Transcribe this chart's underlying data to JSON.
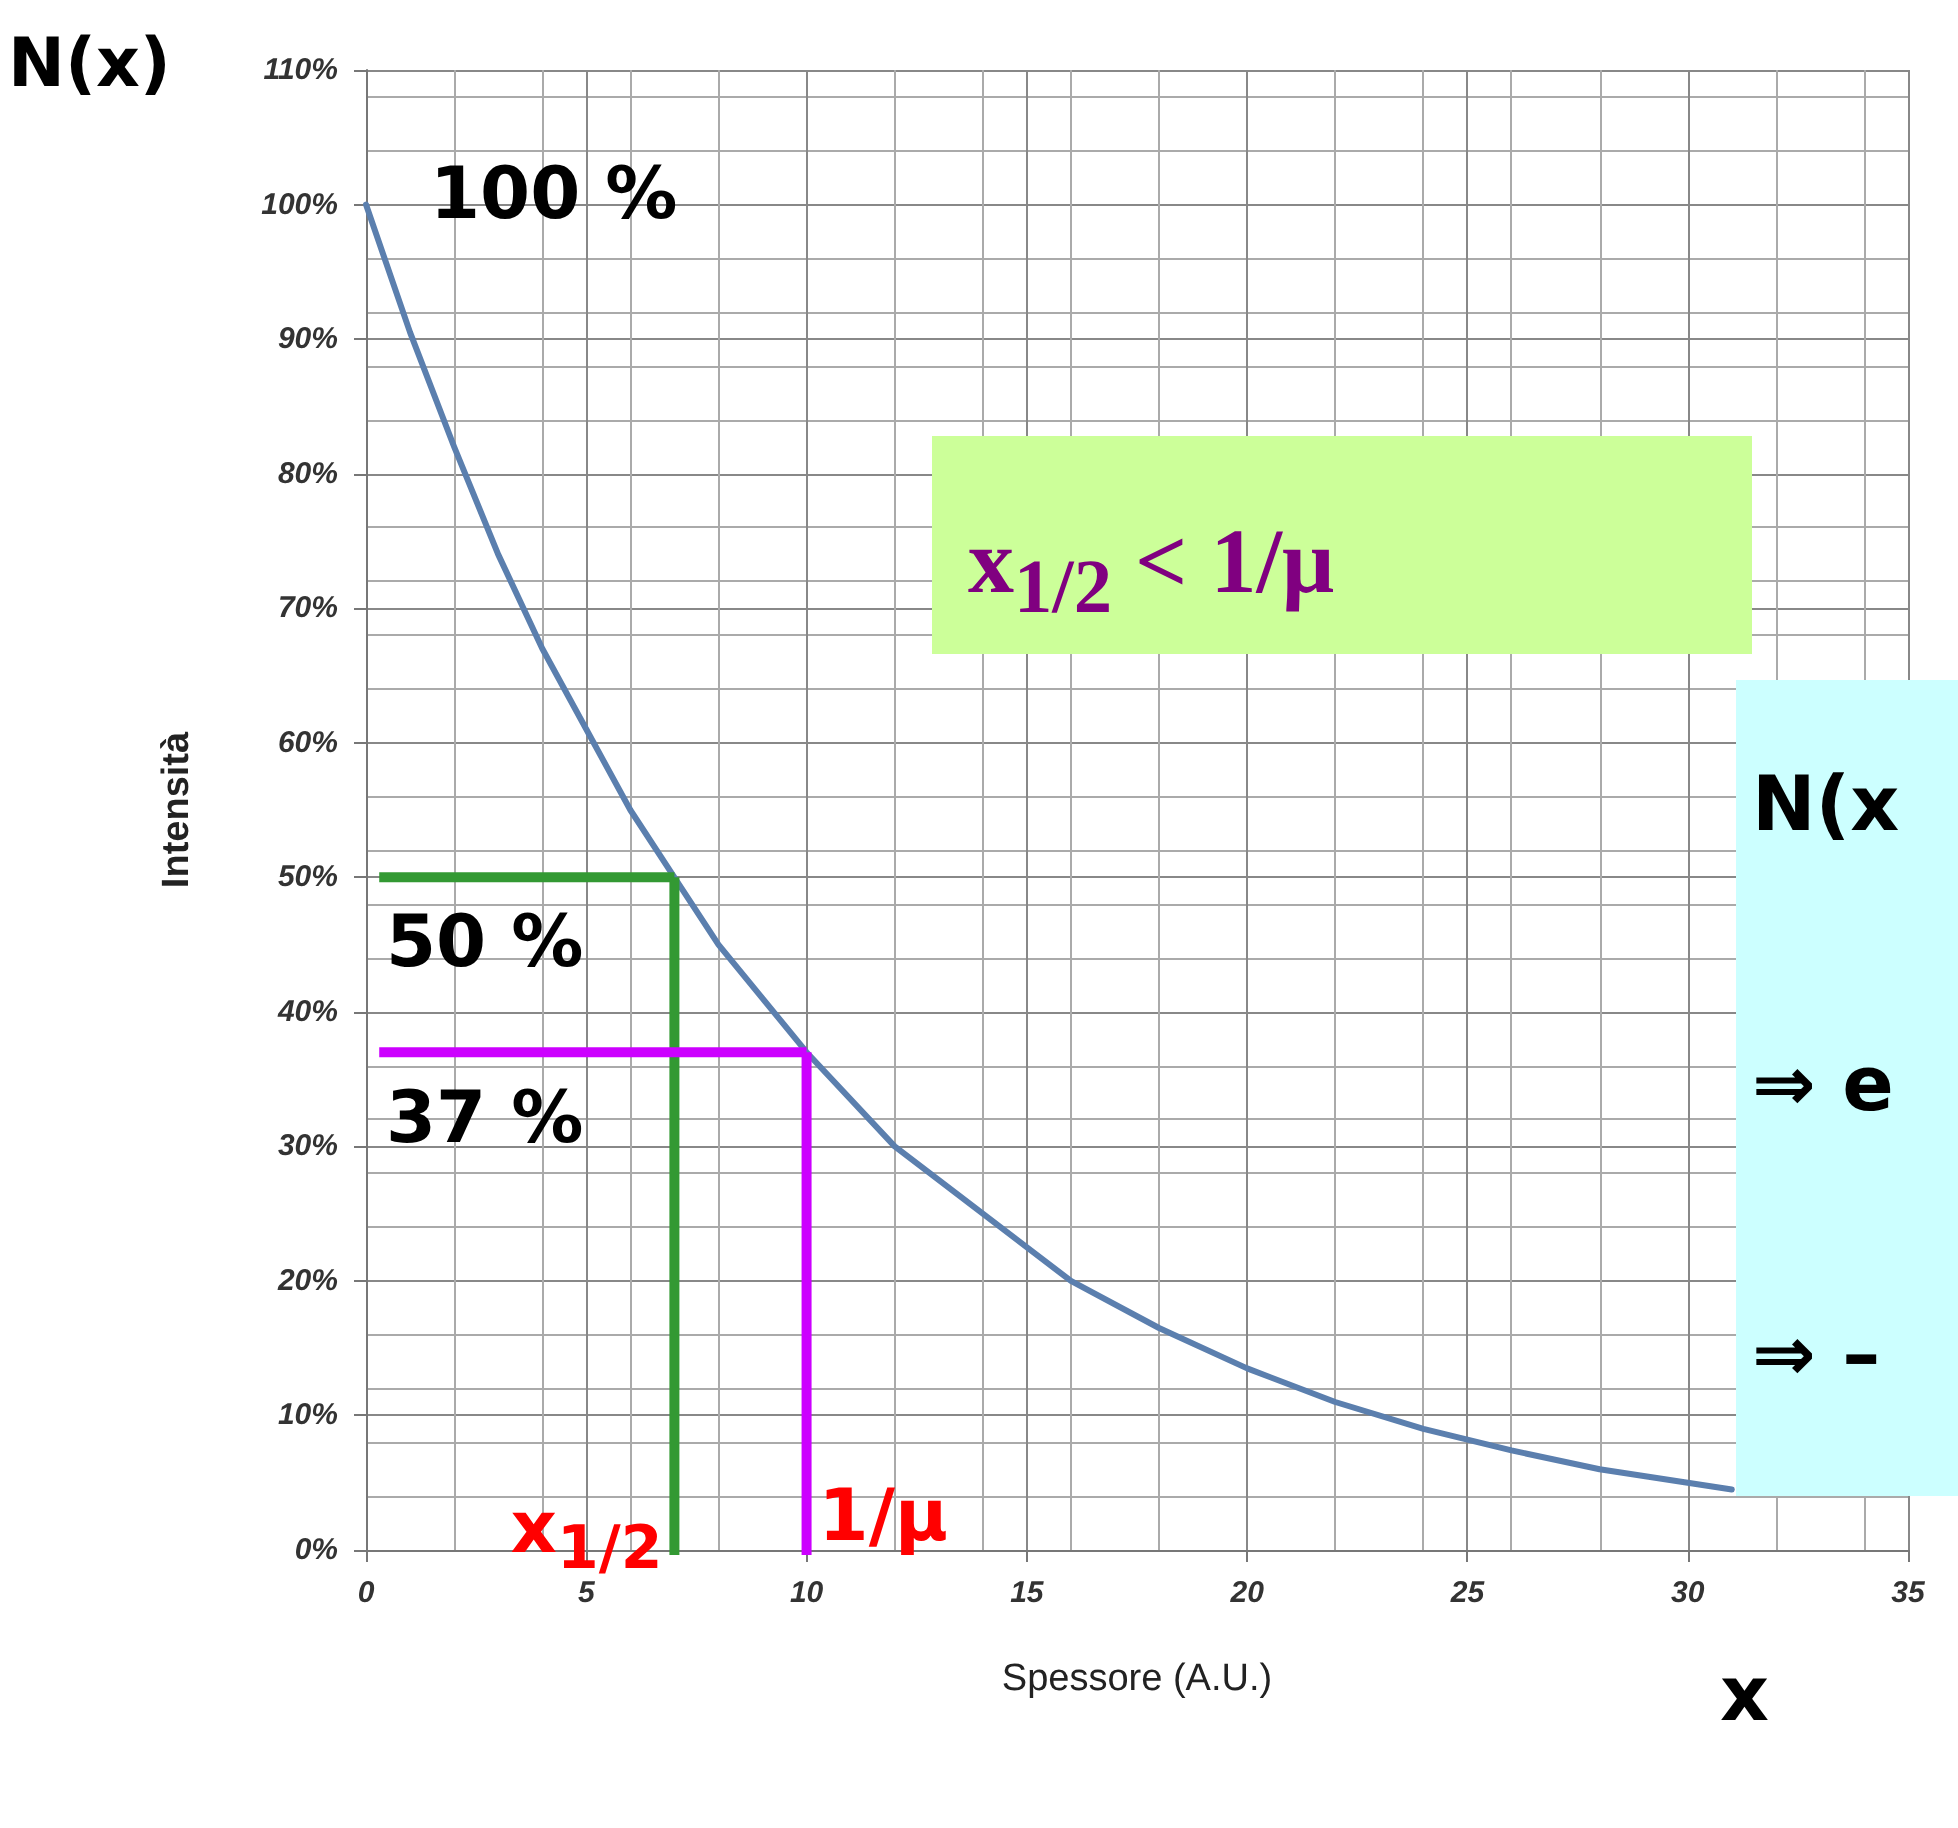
{
  "chart_data": {
    "type": "line",
    "xlabel": "Spessore (A.U.)",
    "ylabel": "Intensità",
    "x": [
      0,
      1,
      2,
      3,
      4,
      5,
      6,
      7,
      8,
      9,
      10,
      12,
      14,
      16,
      18,
      20,
      22,
      24,
      26,
      28,
      30,
      31
    ],
    "series": [
      {
        "color": "#5b7fae",
        "values": [
          100,
          90.5,
          82,
          74,
          67,
          61,
          55,
          50,
          45,
          41,
          37,
          30,
          25,
          20,
          16.5,
          13.5,
          11,
          9,
          7.4,
          6,
          5,
          4.5
        ]
      }
    ],
    "xlim": [
      0,
      35
    ],
    "xticks": [
      0,
      5,
      10,
      15,
      20,
      25,
      30,
      35
    ],
    "ylim": [
      0,
      110
    ],
    "yticks": [
      {
        "value": 0,
        "label": "0%"
      },
      {
        "value": 10,
        "label": "10%"
      },
      {
        "value": 20,
        "label": "20%"
      },
      {
        "value": 30,
        "label": "30%"
      },
      {
        "value": 40,
        "label": "40%"
      },
      {
        "value": 50,
        "label": "50%"
      },
      {
        "value": 60,
        "label": "60%"
      },
      {
        "value": 70,
        "label": "70%"
      },
      {
        "value": 80,
        "label": "80%"
      },
      {
        "value": 90,
        "label": "90%"
      },
      {
        "value": 100,
        "label": "100%"
      },
      {
        "value": 110,
        "label": "110%"
      }
    ],
    "grid": true,
    "marker": "none",
    "line_style": "solid",
    "ref_lines": [
      {
        "axis": "y",
        "value": 50,
        "label": "50 %",
        "color": "#339933"
      },
      {
        "axis": "x",
        "value": 7,
        "label": "x$_{1/2}$",
        "color": "#339933"
      },
      {
        "axis": "y",
        "value": 37,
        "label": "37 %",
        "color": "#cc00ff"
      },
      {
        "axis": "x",
        "value": 10,
        "label": "1/μ",
        "color": "#cc00ff"
      }
    ],
    "annotations": [
      "N(x)",
      "x",
      {
        "text": "100 %",
        "x": 0,
        "y": 100
      },
      "x$_{1/2}$ <  1/μ",
      "N(x",
      "⇒ e",
      "⇒ –"
    ]
  }
}
